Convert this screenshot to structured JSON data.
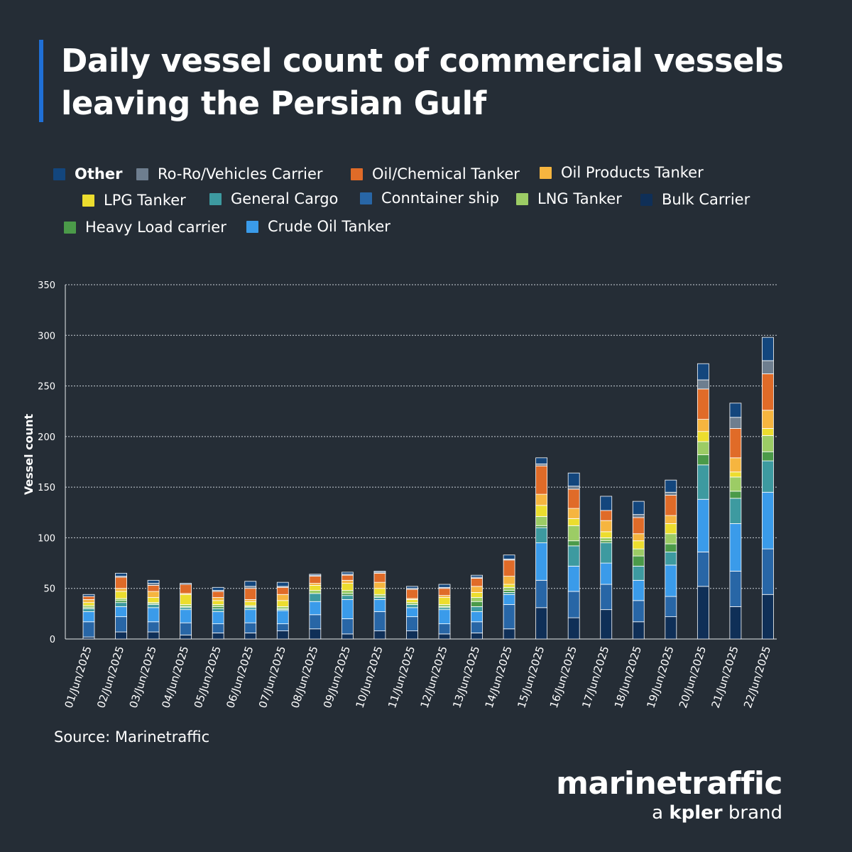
{
  "title_line1": "Daily vessel count of commercial vessels",
  "title_line2": "leaving the Persian Gulf",
  "source": "Source: Marinetraffic",
  "brand": {
    "name": "marinetraffic",
    "prefix": "a",
    "company": "kpler",
    "suffix": "brand"
  },
  "chart_data": {
    "type": "bar",
    "stacked": true,
    "ylabel": "Vessel count",
    "xlabel": "",
    "ylim": [
      0,
      350
    ],
    "yticks": [
      0,
      50,
      100,
      150,
      200,
      250,
      300,
      350
    ],
    "grid": true,
    "legend_position": "top",
    "categories": [
      "01/Jun/2025",
      "02/Jun/2025",
      "03/Jun/2025",
      "04/Jun/2025",
      "05/Jun/2025",
      "06/Jun/2025",
      "07/Jun/2025",
      "08/Jun/2025",
      "09/Jun/2025",
      "10/Jun/2025",
      "11/Jun/2025",
      "12/Jun/2025",
      "13/Jun/2025",
      "14/Jun/2025",
      "15/Jun/2025",
      "16/Jun/2025",
      "17/Jun/2025",
      "18/Jun/2025",
      "19/Jun/2025",
      "20/Jun/2025",
      "21/Jun/2025",
      "22/Jun/2025"
    ],
    "series": [
      {
        "name": "Bulk Carrier",
        "color": "#0f2f57",
        "values": [
          2,
          7,
          7,
          4,
          6,
          6,
          8,
          10,
          5,
          8,
          8,
          5,
          6,
          10,
          31,
          21,
          29,
          17,
          22,
          52,
          32,
          44
        ]
      },
      {
        "name": "Conntainer ship",
        "color": "#2866a6",
        "values": [
          15,
          15,
          10,
          12,
          9,
          10,
          7,
          14,
          15,
          19,
          14,
          10,
          11,
          24,
          27,
          26,
          25,
          21,
          20,
          34,
          35,
          45
        ]
      },
      {
        "name": "Crude Oil Tanker",
        "color": "#3a9bea",
        "values": [
          10,
          10,
          14,
          13,
          12,
          13,
          13,
          13,
          19,
          12,
          9,
          14,
          10,
          10,
          37,
          25,
          21,
          20,
          31,
          52,
          47,
          56
        ]
      },
      {
        "name": "General Cargo",
        "color": "#3d9aa0",
        "values": [
          3,
          4,
          3,
          2,
          3,
          2,
          1,
          8,
          4,
          2,
          3,
          2,
          5,
          2,
          15,
          20,
          20,
          14,
          13,
          34,
          25,
          31
        ]
      },
      {
        "name": "Heavy Load carrier",
        "color": "#4b9a49",
        "values": [
          1,
          2,
          1,
          1,
          2,
          1,
          1,
          0,
          2,
          1,
          0,
          1,
          5,
          2,
          2,
          5,
          2,
          10,
          8,
          10,
          7,
          9
        ]
      },
      {
        "name": "LNG Tanker",
        "color": "#9ccc65",
        "values": [
          2,
          2,
          1,
          2,
          2,
          1,
          2,
          3,
          3,
          2,
          2,
          2,
          4,
          3,
          9,
          15,
          3,
          7,
          10,
          13,
          14,
          16
        ]
      },
      {
        "name": "LPG Tanker",
        "color": "#ecdd2e",
        "values": [
          3,
          7,
          5,
          10,
          4,
          4,
          6,
          5,
          7,
          6,
          3,
          7,
          5,
          3,
          11,
          7,
          6,
          8,
          10,
          10,
          5,
          7
        ]
      },
      {
        "name": "Oil Products Tanker",
        "color": "#f6b53f",
        "values": [
          3,
          3,
          6,
          1,
          3,
          2,
          6,
          2,
          3,
          6,
          1,
          2,
          6,
          8,
          11,
          10,
          11,
          7,
          8,
          12,
          14,
          18
        ]
      },
      {
        "name": "Oil/Chemical Tanker",
        "color": "#e06b28",
        "values": [
          3,
          11,
          6,
          9,
          6,
          11,
          7,
          7,
          5,
          9,
          9,
          7,
          8,
          16,
          28,
          19,
          10,
          16,
          20,
          30,
          29,
          36
        ]
      },
      {
        "name": "Ro-Ro/Vehicles Carrier",
        "color": "#6e7e8f",
        "values": [
          0,
          1,
          2,
          0,
          1,
          2,
          1,
          1,
          1,
          1,
          1,
          1,
          1,
          1,
          2,
          3,
          0,
          3,
          3,
          9,
          11,
          13
        ]
      },
      {
        "name": "Other",
        "color": "#13467d",
        "values": [
          2,
          3,
          3,
          1,
          3,
          5,
          4,
          1,
          2,
          1,
          2,
          3,
          2,
          4,
          6,
          13,
          14,
          13,
          12,
          16,
          14,
          23
        ]
      }
    ],
    "legend_order": [
      "Other",
      "Ro-Ro/Vehicles Carrier",
      "Oil/Chemical Tanker",
      "Oil Products Tanker",
      "LPG Tanker",
      "General Cargo",
      "Conntainer ship",
      "LNG Tanker",
      "Bulk Carrier",
      "Heavy Load carrier",
      "Crude Oil Tanker"
    ]
  }
}
